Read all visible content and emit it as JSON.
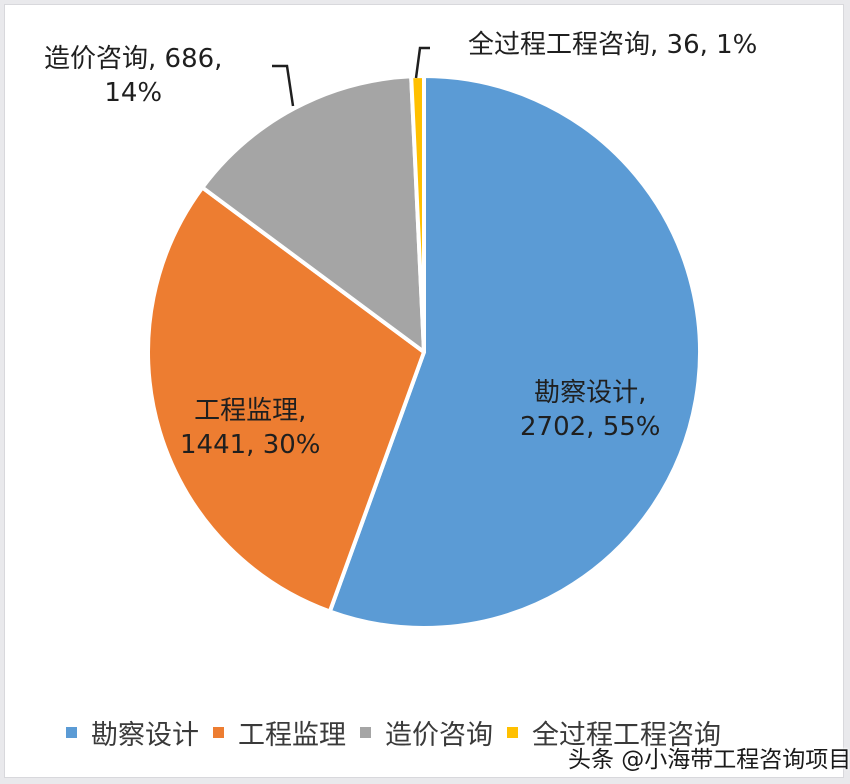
{
  "chart_data": {
    "type": "pie",
    "title": "",
    "categories": [
      "勘察设计",
      "工程监理",
      "造价咨询",
      "全过程工程咨询"
    ],
    "values": [
      2702,
      1441,
      686,
      36
    ],
    "percentages": [
      "55%",
      "30%",
      "14%",
      "1%"
    ],
    "colors": [
      "#5b9bd5",
      "#ed7d31",
      "#a5a5a5",
      "#ffc000"
    ],
    "start_angle_deg": 0,
    "direction": "clockwise",
    "legend_position": "bottom",
    "data_labels": [
      {
        "line1": "勘察设计,",
        "line2": "2702, 55%"
      },
      {
        "line1": "工程监理,",
        "line2": "1441, 30%"
      },
      {
        "line1": "造价咨询, 686,",
        "line2": "14%"
      },
      {
        "line1": "全过程工程咨询, 36, 1%",
        "line2": ""
      }
    ]
  },
  "legend": {
    "items": [
      {
        "label": "勘察设计",
        "color": "#5b9bd5"
      },
      {
        "label": "工程监理",
        "color": "#ed7d31"
      },
      {
        "label": "造价咨询",
        "color": "#a5a5a5"
      },
      {
        "label": "全过程工程咨询",
        "color": "#ffc000"
      }
    ]
  },
  "watermark": "头条 @小海带工程咨询项目"
}
